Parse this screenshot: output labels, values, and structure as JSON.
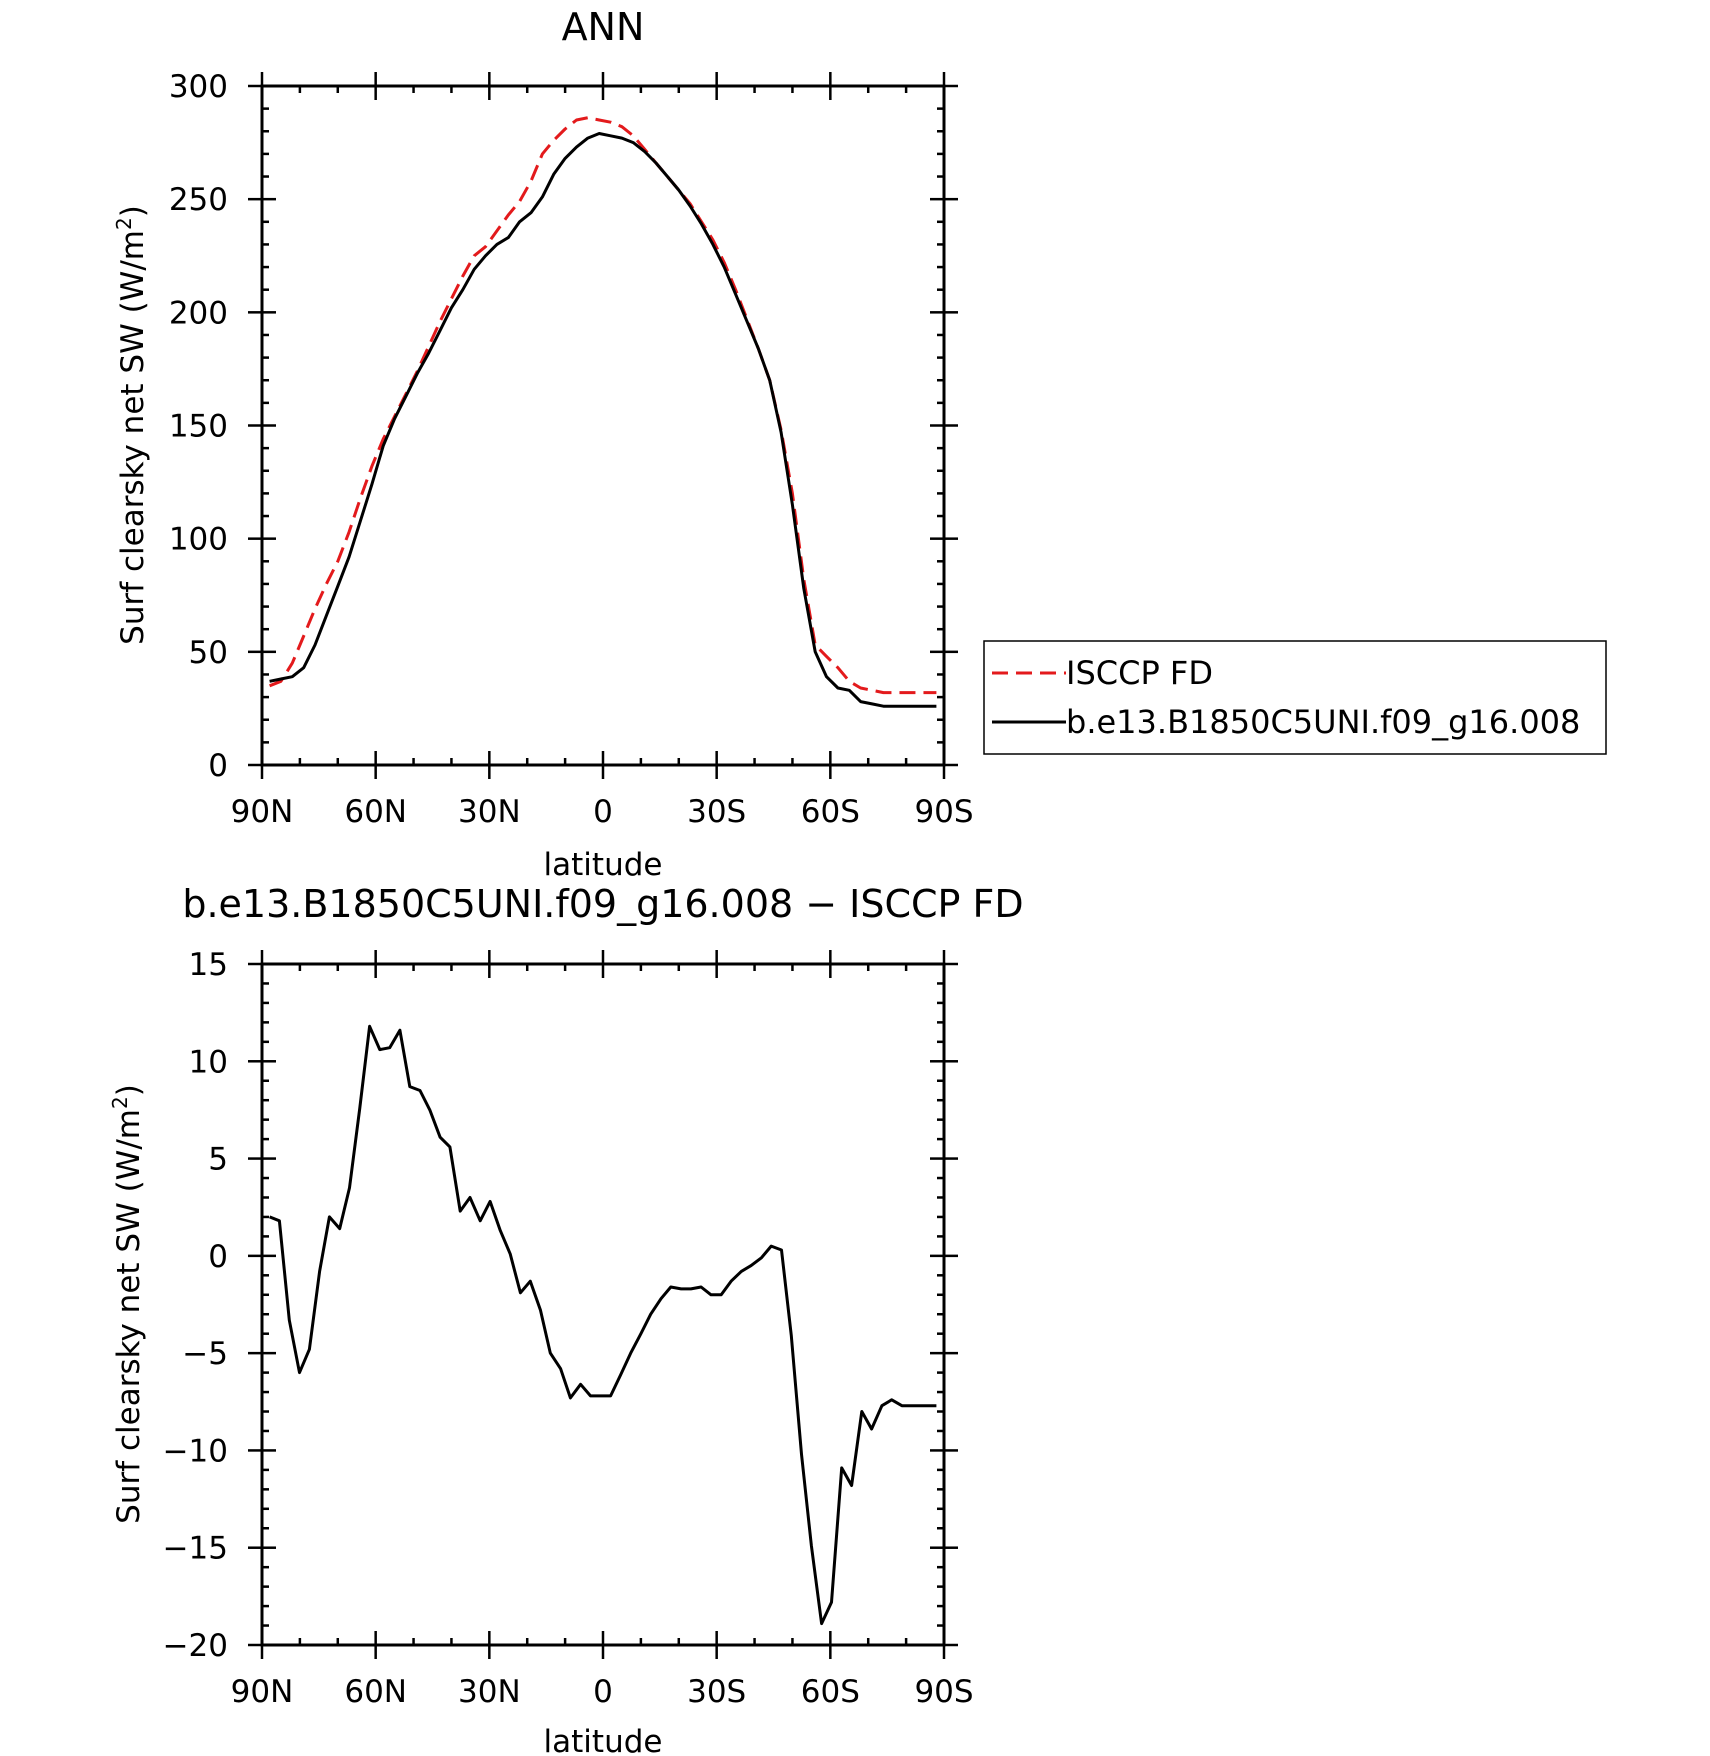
{
  "chart_data": [
    {
      "type": "line",
      "title": "ANN",
      "xlabel": "latitude",
      "ylabel": "Surf clearsky net SW (W/m²)",
      "ylabel_main": "Surf clearsky net SW (W/m",
      "ylabel_sup": "2",
      "ylabel_close": ")",
      "xlim": [
        90,
        -90
      ],
      "ylim": [
        0,
        300
      ],
      "xticks": [
        90,
        60,
        30,
        0,
        -30,
        -60,
        -90
      ],
      "xtick_labels": [
        "90N",
        "60N",
        "30N",
        "0",
        "30S",
        "60S",
        "90S"
      ],
      "yticks": [
        0,
        50,
        100,
        150,
        200,
        250,
        300
      ],
      "ytick_labels": [
        "0",
        "50",
        "100",
        "150",
        "200",
        "250",
        "300"
      ],
      "grid": false,
      "legend_position": "right, outside plot",
      "series": [
        {
          "name": "ISCCP FD",
          "color": "#e31a1c",
          "dash": "dashed",
          "x": [
            88,
            85,
            82,
            79,
            76,
            73,
            70,
            67,
            64,
            61,
            58,
            55,
            52,
            49,
            46,
            43,
            40,
            37,
            34,
            31,
            28,
            25,
            22,
            19,
            16,
            13,
            10,
            7,
            4,
            1,
            -2,
            -5,
            -8,
            -11,
            -14,
            -17,
            -20,
            -23,
            -26,
            -29,
            -32,
            -35,
            -38,
            -41,
            -44,
            -47,
            -50,
            -53,
            -56,
            -59,
            -62,
            -65,
            -68,
            -71,
            -74,
            -77,
            -80,
            -83,
            -86,
            -88
          ],
          "y": [
            35,
            37,
            45,
            57,
            69,
            80,
            90,
            103,
            118,
            132,
            144,
            154,
            164,
            174,
            185,
            196,
            206,
            216,
            225,
            229,
            236,
            243,
            249,
            258,
            270,
            276,
            281,
            285,
            286,
            285,
            284,
            282,
            278,
            272,
            266,
            260,
            254,
            248,
            240,
            232,
            222,
            210,
            197,
            184,
            170,
            148,
            120,
            82,
            53,
            48,
            43,
            37,
            34,
            33,
            32,
            32,
            32,
            32,
            32,
            32
          ]
        },
        {
          "name": "b.e13.B1850C5UNI.f09_g16.008",
          "color": "#000000",
          "dash": "solid",
          "x": [
            88,
            85,
            82,
            79,
            76,
            73,
            70,
            67,
            64,
            61,
            58,
            55,
            52,
            49,
            46,
            43,
            40,
            37,
            34,
            31,
            28,
            25,
            22,
            19,
            16,
            13,
            10,
            7,
            4,
            1,
            -2,
            -5,
            -8,
            -11,
            -14,
            -17,
            -20,
            -23,
            -26,
            -29,
            -32,
            -35,
            -38,
            -41,
            -44,
            -47,
            -50,
            -53,
            -56,
            -59,
            -62,
            -65,
            -68,
            -71,
            -74,
            -77,
            -80,
            -83,
            -86,
            -88
          ],
          "y": [
            37,
            38,
            39,
            43,
            53,
            66,
            79,
            92,
            108,
            124,
            141,
            153,
            163,
            173,
            182,
            192,
            202,
            210,
            219,
            225,
            230,
            233,
            240,
            244,
            251,
            261,
            268,
            273,
            277,
            279,
            278,
            277,
            275,
            271,
            266,
            260,
            254,
            247,
            239,
            230,
            220,
            208,
            196,
            184,
            170,
            147,
            115,
            78,
            50,
            39,
            34,
            33,
            28,
            27,
            26,
            26,
            26,
            26,
            26,
            26
          ]
        }
      ]
    },
    {
      "type": "line",
      "title": "b.e13.B1850C5UNI.f09_g16.008 − ISCCP FD",
      "xlabel": "latitude",
      "ylabel": "Surf clearsky net SW (W/m²)",
      "ylabel_main": "Surf clearsky net SW (W/m",
      "ylabel_sup": "2",
      "ylabel_close": ")",
      "xlim": [
        90,
        -90
      ],
      "ylim": [
        -20,
        15
      ],
      "xticks": [
        90,
        60,
        30,
        0,
        -30,
        -60,
        -90
      ],
      "xtick_labels": [
        "90N",
        "60N",
        "30N",
        "0",
        "30S",
        "60S",
        "90S"
      ],
      "yticks": [
        -20,
        -15,
        -10,
        -5,
        0,
        5,
        10,
        15
      ],
      "ytick_labels": [
        "−20",
        "−15",
        "−10",
        "−5",
        "0",
        "5",
        "10",
        "15"
      ],
      "grid": false,
      "series": [
        {
          "color": "#000000",
          "dash": "solid",
          "x": [
            88,
            85.4,
            82.8,
            80.1,
            77.5,
            74.8,
            72.2,
            69.5,
            66.9,
            64.2,
            61.6,
            58.9,
            56.3,
            53.6,
            51,
            48.3,
            45.7,
            43,
            40.4,
            37.7,
            35.1,
            32.4,
            29.8,
            27.1,
            24.5,
            21.8,
            19.2,
            16.5,
            13.9,
            11.2,
            8.6,
            5.9,
            3.3,
            0.6,
            -2,
            -4.7,
            -7.3,
            -10,
            -12.6,
            -15.3,
            -17.9,
            -20.6,
            -23.2,
            -25.9,
            -28.5,
            -31.2,
            -33.8,
            -36.5,
            -39.1,
            -41.8,
            -44.4,
            -47.1,
            -49.7,
            -52.4,
            -55,
            -57.7,
            -60.3,
            -63,
            -65.6,
            -68.3,
            -70.9,
            -73.6,
            -76.2,
            -78.9,
            -81.5,
            -84.2,
            -86.8,
            -88
          ],
          "y": [
            2,
            1.8,
            -3.3,
            -6,
            -4.8,
            -0.8,
            2,
            1.4,
            3.5,
            7.6,
            11.8,
            10.6,
            10.7,
            11.6,
            8.7,
            8.5,
            7.5,
            6.1,
            5.6,
            2.3,
            3,
            1.8,
            2.8,
            1.3,
            0.1,
            -1.9,
            -1.3,
            -2.8,
            -5,
            -5.8,
            -7.3,
            -6.6,
            -7.2,
            -7.2,
            -7.2,
            -6.1,
            -5,
            -4,
            -3,
            -2.2,
            -1.6,
            -1.7,
            -1.7,
            -1.6,
            -2,
            -2,
            -1.3,
            -0.8,
            -0.5,
            -0.1,
            0.5,
            0.3,
            -4.1,
            -10.2,
            -14.9,
            -18.9,
            -17.8,
            -10.9,
            -11.8,
            -8,
            -8.9,
            -7.7,
            -7.4,
            -7.7,
            -7.7,
            -7.7,
            -7.7,
            -7.7
          ]
        }
      ]
    }
  ]
}
